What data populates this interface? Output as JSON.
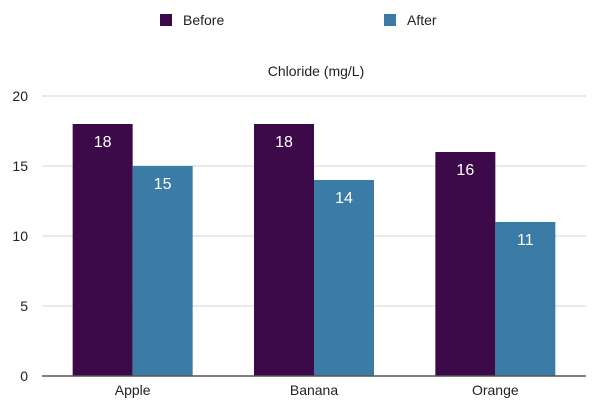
{
  "chart_data": {
    "type": "bar",
    "title": "Chloride (mg/L)",
    "xlabel": "",
    "ylabel": "",
    "categories": [
      "Apple",
      "Banana",
      "Orange"
    ],
    "series": [
      {
        "name": "Before",
        "color": "#3c0a49",
        "values": [
          18,
          18,
          16
        ]
      },
      {
        "name": "After",
        "color": "#3a7ca5",
        "values": [
          15,
          14,
          11
        ]
      }
    ],
    "ylim": [
      0,
      20
    ],
    "yticks": [
      0,
      5,
      10,
      15,
      20
    ],
    "grid": true,
    "legend": "top-center",
    "data_labels": true
  }
}
